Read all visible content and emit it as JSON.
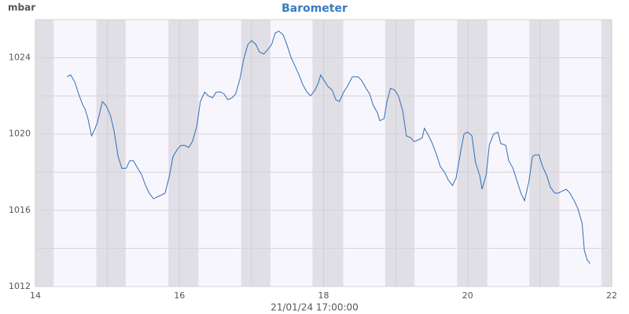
{
  "chart_data": {
    "type": "line",
    "title": "Barometer",
    "y_label": "mbar",
    "x_label": "21/01/24 17:00:00",
    "xlim": [
      14,
      22
    ],
    "xticks": [
      14,
      16,
      18,
      20,
      22
    ],
    "xminor": [
      15,
      17,
      19,
      21
    ],
    "ylim": [
      1012,
      1026
    ],
    "yticks": [
      1012,
      1016,
      1020,
      1024
    ],
    "yminor": [
      1014,
      1018,
      1022,
      1026
    ],
    "grid": true,
    "shaded_ranges": [
      [
        14,
        14.25
      ],
      [
        14.85,
        15.25
      ],
      [
        15.85,
        16.26
      ],
      [
        16.86,
        17.26
      ],
      [
        17.85,
        18.27
      ],
      [
        18.86,
        19.26
      ],
      [
        19.86,
        20.27
      ],
      [
        20.86,
        21.27
      ],
      [
        21.86,
        22
      ]
    ],
    "series": [
      {
        "color": "#2f6fb5",
        "x": [
          14.44,
          14.49,
          14.55,
          14.6,
          14.66,
          14.69,
          14.73,
          14.78,
          14.82,
          14.86,
          14.93,
          14.98,
          15.04,
          15.09,
          15.15,
          15.2,
          15.26,
          15.31,
          15.36,
          15.42,
          15.47,
          15.53,
          15.58,
          15.64,
          15.69,
          15.75,
          15.8,
          15.86,
          15.91,
          15.97,
          16.02,
          16.07,
          16.13,
          16.18,
          16.24,
          16.29,
          16.35,
          16.4,
          16.46,
          16.51,
          16.57,
          16.62,
          16.67,
          16.73,
          16.78,
          16.84,
          16.89,
          16.95,
          17.0,
          17.06,
          17.11,
          17.17,
          17.22,
          17.28,
          17.33,
          17.38,
          17.44,
          17.49,
          17.55,
          17.6,
          17.66,
          17.71,
          17.77,
          17.82,
          17.88,
          17.93,
          17.96,
          18.01,
          18.06,
          18.12,
          18.17,
          18.22,
          18.28,
          18.33,
          18.4,
          18.48,
          18.53,
          18.59,
          18.64,
          18.69,
          18.75,
          18.78,
          18.84,
          18.88,
          18.93,
          18.99,
          19.04,
          19.1,
          19.15,
          19.21,
          19.26,
          19.32,
          19.37,
          19.4,
          19.46,
          19.51,
          19.57,
          19.62,
          19.68,
          19.73,
          19.79,
          19.84,
          19.9,
          19.95,
          20.0,
          20.06,
          20.11,
          20.17,
          20.2,
          20.26,
          20.3,
          20.36,
          20.42,
          20.46,
          20.53,
          20.57,
          20.63,
          20.68,
          20.74,
          20.79,
          20.85,
          20.9,
          20.93,
          20.99,
          21.04,
          21.1,
          21.15,
          21.21,
          21.26,
          21.31,
          21.37,
          21.42,
          21.48,
          21.53,
          21.59,
          21.62,
          21.66,
          21.7
        ],
        "values": [
          1023.0,
          1023.1,
          1022.7,
          1022.1,
          1021.5,
          1021.3,
          1020.8,
          1019.9,
          1020.2,
          1020.6,
          1021.7,
          1021.5,
          1021.0,
          1020.2,
          1018.8,
          1018.2,
          1018.2,
          1018.6,
          1018.6,
          1018.2,
          1017.9,
          1017.3,
          1016.9,
          1016.6,
          1016.7,
          1016.8,
          1016.9,
          1017.8,
          1018.8,
          1019.2,
          1019.4,
          1019.4,
          1019.3,
          1019.6,
          1020.4,
          1021.7,
          1022.2,
          1022.0,
          1021.9,
          1022.2,
          1022.2,
          1022.1,
          1021.8,
          1021.9,
          1022.1,
          1022.9,
          1023.9,
          1024.7,
          1024.9,
          1024.7,
          1024.3,
          1024.2,
          1024.4,
          1024.7,
          1025.3,
          1025.4,
          1025.2,
          1024.7,
          1024.0,
          1023.6,
          1023.1,
          1022.6,
          1022.2,
          1022.0,
          1022.3,
          1022.7,
          1023.1,
          1022.8,
          1022.5,
          1022.3,
          1021.8,
          1021.7,
          1022.2,
          1022.5,
          1023.0,
          1023.0,
          1022.8,
          1022.4,
          1022.1,
          1021.5,
          1021.1,
          1020.7,
          1020.8,
          1021.7,
          1022.4,
          1022.3,
          1022.0,
          1021.2,
          1019.9,
          1019.8,
          1019.6,
          1019.7,
          1019.8,
          1020.3,
          1019.9,
          1019.5,
          1018.9,
          1018.3,
          1018.0,
          1017.6,
          1017.3,
          1017.7,
          1019.0,
          1020.0,
          1020.1,
          1019.9,
          1018.5,
          1017.8,
          1017.1,
          1017.9,
          1019.4,
          1020.0,
          1020.1,
          1019.5,
          1019.4,
          1018.6,
          1018.2,
          1017.6,
          1016.9,
          1016.5,
          1017.5,
          1018.8,
          1018.9,
          1018.9,
          1018.3,
          1017.8,
          1017.2,
          1016.9,
          1016.9,
          1017.0,
          1017.1,
          1016.9,
          1016.5,
          1016.1,
          1015.3,
          1013.9,
          1013.4,
          1013.2
        ]
      }
    ]
  }
}
